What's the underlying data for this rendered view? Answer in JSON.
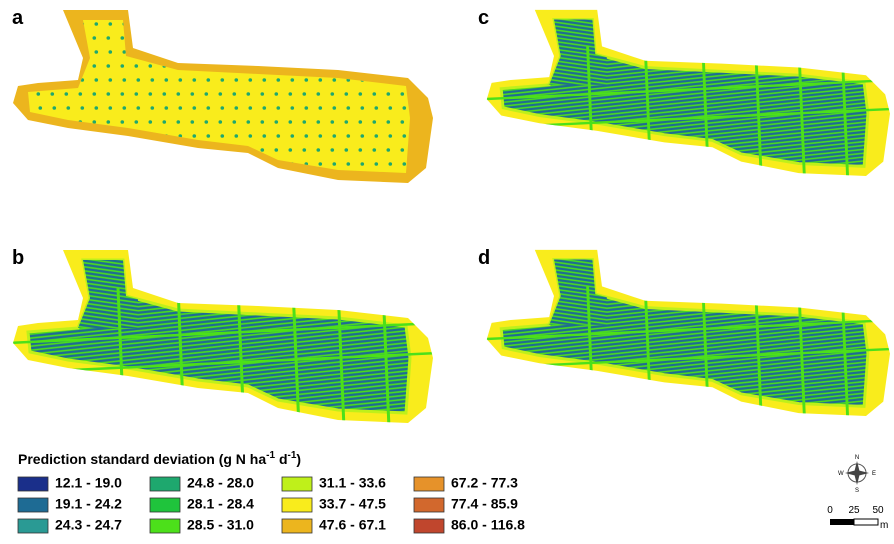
{
  "panels": [
    {
      "label": "a"
    },
    {
      "label": "b"
    },
    {
      "label": "c"
    },
    {
      "label": "d"
    }
  ],
  "legend": {
    "title": {
      "text": "Prediction standard deviation (g N ha",
      "sup1": "-1",
      "mid": " d",
      "sup2": "-1",
      "end": ")"
    },
    "items": [
      {
        "label": "12.1 - 19.0",
        "color": "#1a2f8a"
      },
      {
        "label": "19.1 - 24.2",
        "color": "#1e6b94"
      },
      {
        "label": "24.3 - 24.7",
        "color": "#2a9a94"
      },
      {
        "label": "24.8 - 28.0",
        "color": "#1ea86e"
      },
      {
        "label": "28.1 - 28.4",
        "color": "#1fc43c"
      },
      {
        "label": "28.5 - 31.0",
        "color": "#4ce01a"
      },
      {
        "label": "31.1 - 33.6",
        "color": "#bff01a"
      },
      {
        "label": "33.7 - 47.5",
        "color": "#f9ec1c"
      },
      {
        "label": "47.6 - 67.1",
        "color": "#ecb51e"
      },
      {
        "label": "67.2 - 77.3",
        "color": "#e6922a"
      },
      {
        "label": "77.4 - 85.9",
        "color": "#d2682d"
      },
      {
        "label": "86.0 - 116.8",
        "color": "#c0462d"
      }
    ]
  },
  "compass": {
    "n": "N",
    "e": "E",
    "s": "S",
    "w": "W"
  },
  "scale_bar": {
    "ticks": [
      "0",
      "25",
      "50"
    ],
    "unit": "m"
  }
}
